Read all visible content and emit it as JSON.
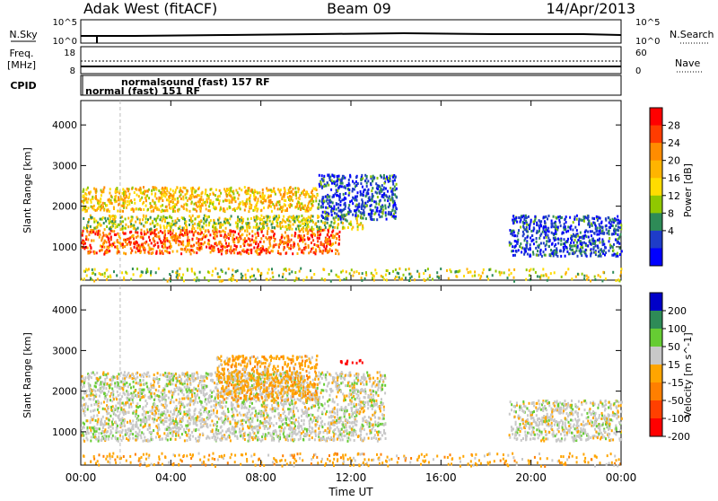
{
  "header": {
    "radar": "Adak West (fitACF)",
    "beam": "Beam 09",
    "date": "14/Apr/2013"
  },
  "sky_panel": {
    "left_label": "N.Sky",
    "right_label": "N.Search",
    "left_ticks": [
      "10^5",
      "10^0"
    ],
    "right_ticks": [
      "10^5",
      "10^0"
    ]
  },
  "freq_panel": {
    "left_label_1": "Freq.",
    "left_label_2": "[MHz]",
    "right_label": "Nave",
    "left_ticks": [
      "18",
      "8"
    ],
    "right_ticks": [
      "60",
      "0"
    ]
  },
  "cpid_panel": {
    "label": "CPID",
    "mode_1": "normal (fast) 151 RF",
    "mode_2": "normalsound (fast) 157 RF"
  },
  "x_axis": {
    "label": "Time UT",
    "ticks": [
      "00:00",
      "04:00",
      "08:00",
      "12:00",
      "16:00",
      "20:00",
      "00:00"
    ]
  },
  "chart_data": [
    {
      "type": "heatmap",
      "quantity": "Power",
      "ylabel": "Slant Range [km]",
      "xlabel": "Time UT",
      "xlim": [
        0,
        24
      ],
      "ylim": [
        180,
        4600
      ],
      "yticks": [
        1000,
        2000,
        3000,
        4000
      ],
      "colorbar": {
        "label": "Power [dB]",
        "ticks": [
          "28",
          "24",
          "20",
          "16",
          "12",
          "8",
          "4"
        ],
        "colors": [
          "#ff0000",
          "#ff3c00",
          "#ff8c00",
          "#ffb400",
          "#ffdc00",
          "#90c800",
          "#2e8b57",
          "#1e3cc8",
          "#0000ff"
        ]
      },
      "regions": [
        {
          "x": [
            0.0,
            11.5
          ],
          "range_km": [
            850,
            1450
          ],
          "value_db": 26
        },
        {
          "x": [
            0.0,
            12.5
          ],
          "range_km": [
            1450,
            1800
          ],
          "value_db": 16
        },
        {
          "x": [
            0.0,
            10.5
          ],
          "range_km": [
            1900,
            2500
          ],
          "value_db": 20
        },
        {
          "x": [
            10.5,
            14.0
          ],
          "range_km": [
            1700,
            2800
          ],
          "value_db": 8
        },
        {
          "x": [
            19.0,
            24.0
          ],
          "range_km": [
            800,
            1800
          ],
          "value_db": 8
        },
        {
          "x": [
            0.0,
            24.0
          ],
          "range_km": [
            180,
            500
          ],
          "value_db": 16
        }
      ]
    },
    {
      "type": "heatmap",
      "quantity": "Velocity",
      "ylabel": "Slant Range [km]",
      "xlabel": "Time UT",
      "xlim": [
        0,
        24
      ],
      "ylim": [
        180,
        4600
      ],
      "yticks": [
        1000,
        2000,
        3000,
        4000
      ],
      "colorbar": {
        "label": "Velocity [m s^-1]",
        "ticks": [
          "200",
          "100",
          "50",
          "15",
          "-15",
          "-50",
          "-100",
          "-200"
        ],
        "colors": [
          "#0000c8",
          "#2e8b57",
          "#66cc33",
          "#c8c8c8",
          "#ffa500",
          "#ff7f00",
          "#ff4000",
          "#ff0000"
        ]
      },
      "regions": [
        {
          "x": [
            0.0,
            13.5
          ],
          "range_km": [
            800,
            2500
          ],
          "value_ms": 0
        },
        {
          "x": [
            6.0,
            10.5
          ],
          "range_km": [
            1800,
            2900
          ],
          "value_ms": -40
        },
        {
          "x": [
            11.5,
            12.5
          ],
          "range_km": [
            2700,
            2800
          ],
          "value_ms": -200
        },
        {
          "x": [
            19.0,
            24.0
          ],
          "range_km": [
            800,
            1800
          ],
          "value_ms": 0
        },
        {
          "x": [
            0.0,
            24.0
          ],
          "range_km": [
            180,
            500
          ],
          "value_ms": -40
        }
      ]
    }
  ]
}
